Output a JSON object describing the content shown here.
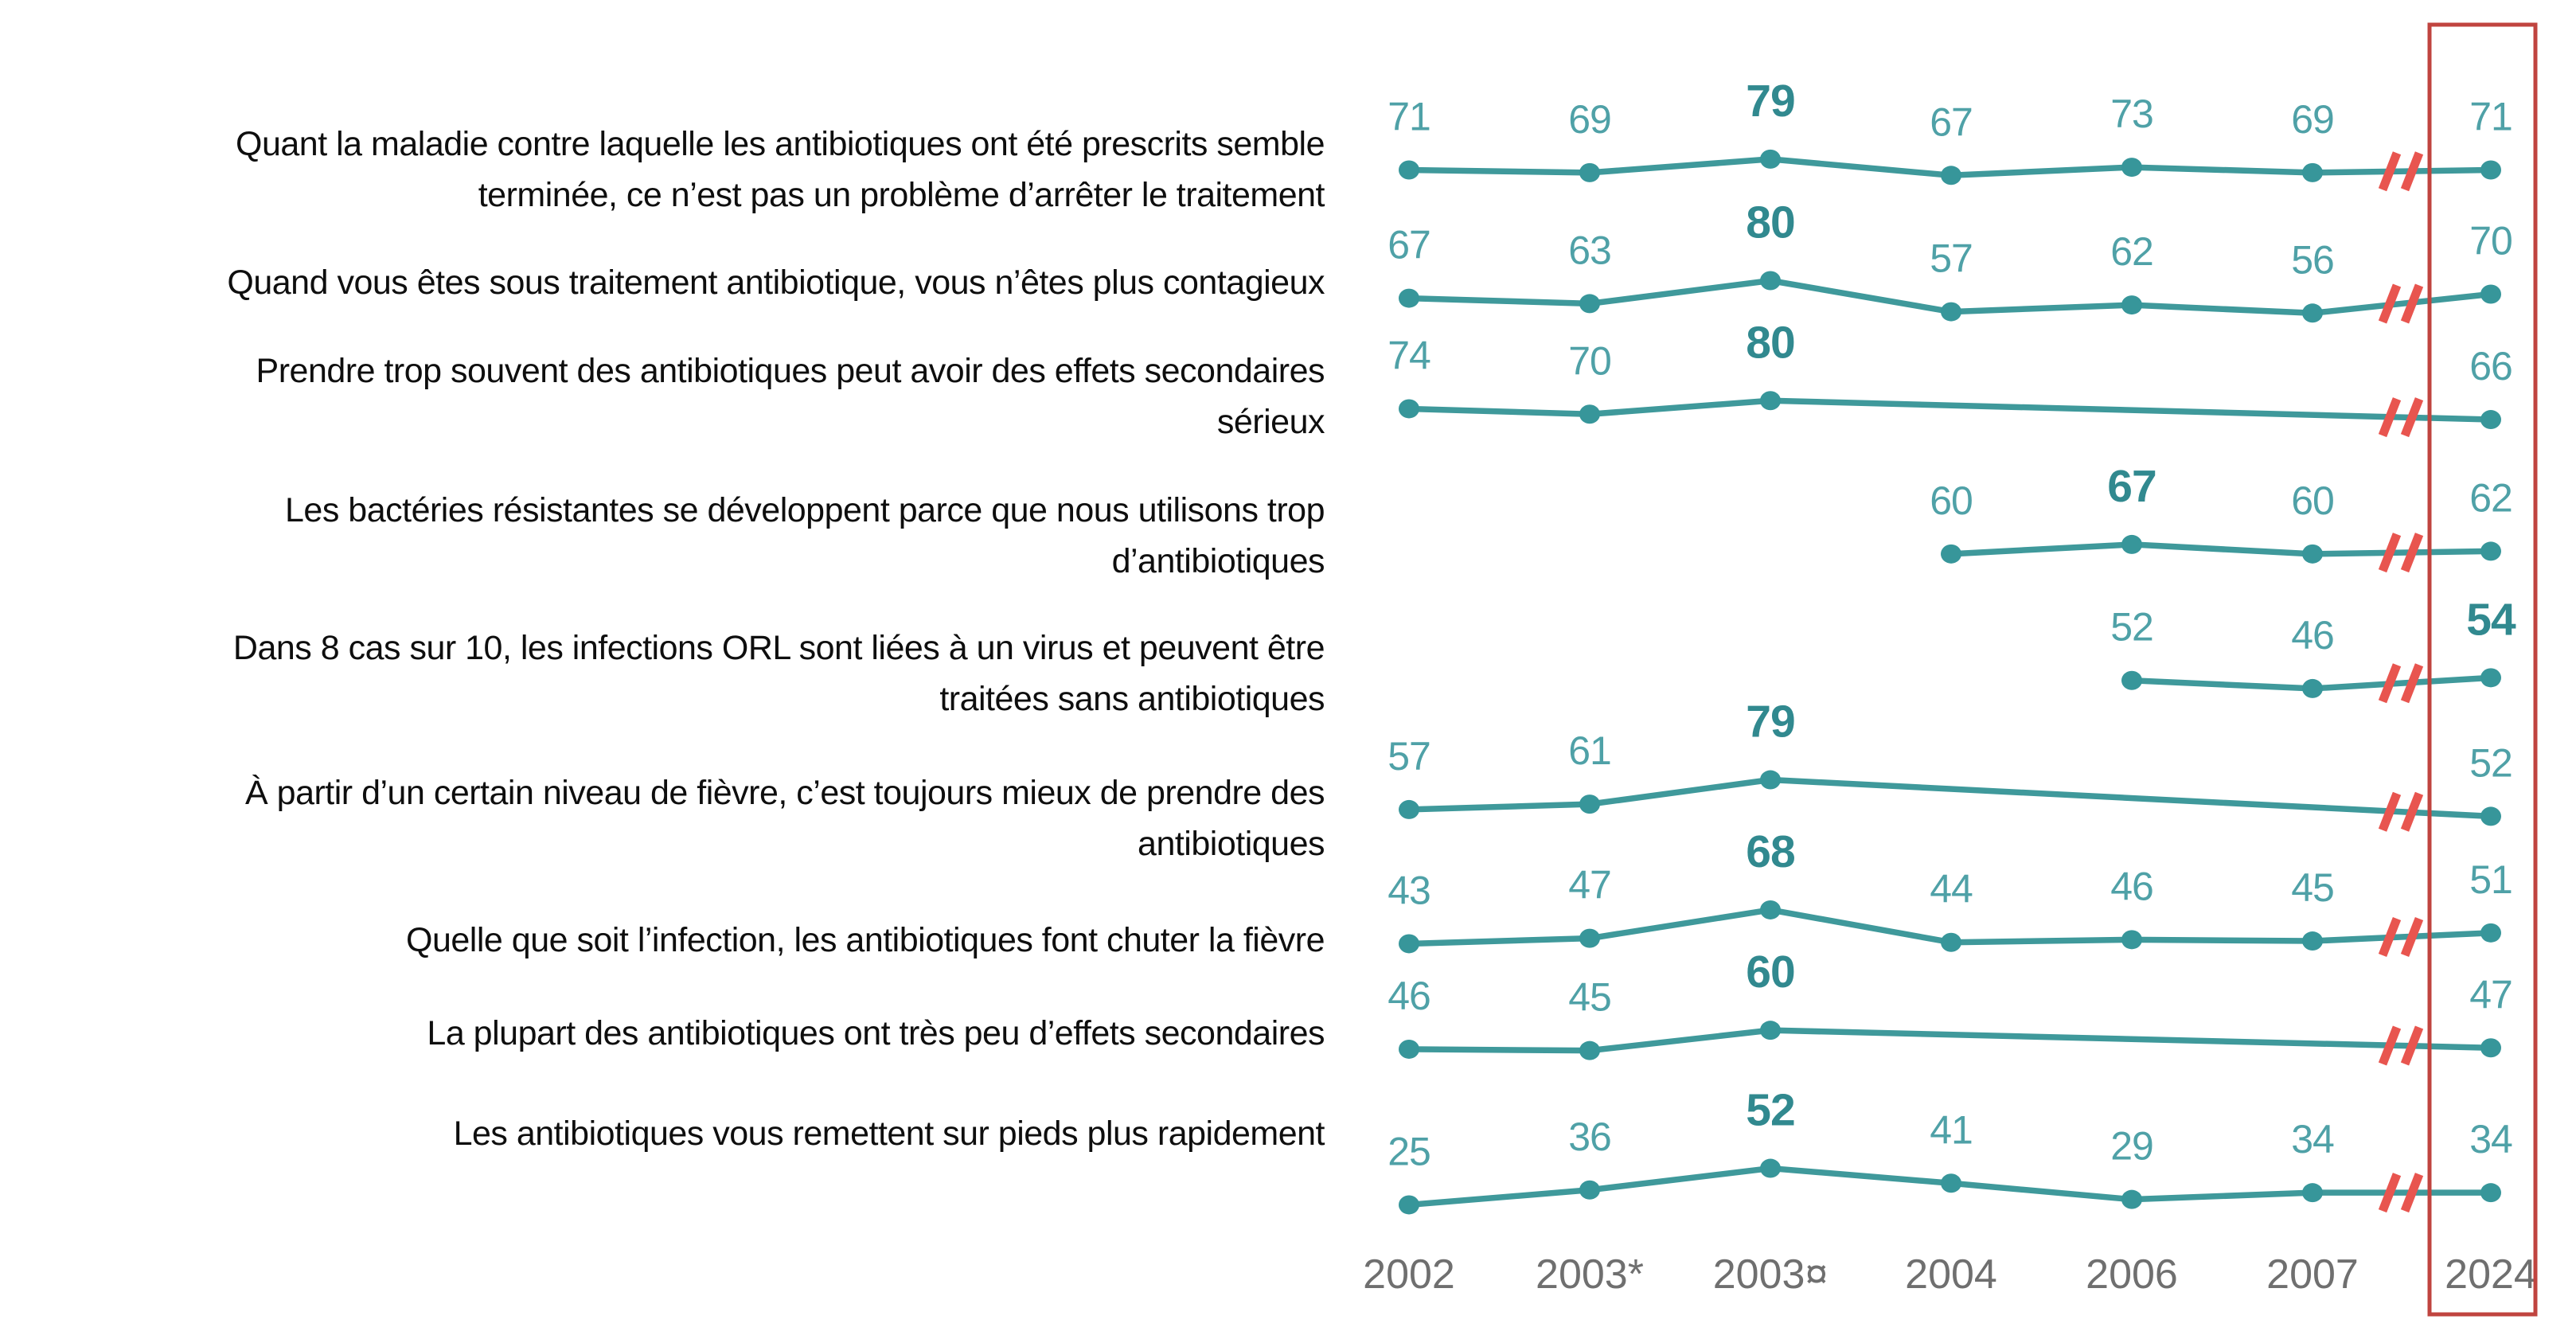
{
  "colors": {
    "line_teal": "#3F999B",
    "dot_teal": "#37969A",
    "number_teal": "#4FA1A7",
    "number_teal_bold": "#31898F",
    "break_red": "#E8554F",
    "box_red": "#C0443F",
    "axis_gray": "#6F6F6F",
    "label_black": "#0E0E0E"
  },
  "chart_data": {
    "type": "line",
    "x_categories": [
      "2002",
      "2003*",
      "2003¤",
      "2004",
      "2006",
      "2007",
      "2024"
    ],
    "axis_break": {
      "between": [
        "2007",
        "2024"
      ],
      "symbol": "//"
    },
    "highlighted_category": "2024",
    "legend_position": "none",
    "grid": false,
    "series": [
      {
        "label": "Quant la maladie contre laquelle les antibiotiques ont été prescrits semble terminée, ce n’est pas un problème d’arrêter le traitement",
        "label_lines": [
          "Quant la maladie contre laquelle les antibiotiques ont été prescrits semble",
          "terminée, ce n’est pas un problème d’arrêter le traitement"
        ],
        "values": [
          71,
          69,
          79,
          67,
          73,
          69,
          71
        ],
        "bold_category": "2003¤"
      },
      {
        "label": "Quand vous êtes sous traitement antibiotique, vous n’êtes plus contagieux",
        "label_lines": [
          "Quand vous êtes sous traitement antibiotique, vous n’êtes plus contagieux"
        ],
        "values": [
          67,
          63,
          80,
          57,
          62,
          56,
          70
        ],
        "bold_category": "2003¤"
      },
      {
        "label": "Prendre trop souvent des antibiotiques peut avoir des effets secondaires sérieux",
        "label_lines": [
          "Prendre trop souvent des antibiotiques peut avoir des effets secondaires",
          "sérieux"
        ],
        "values": [
          74,
          70,
          80,
          null,
          null,
          null,
          66
        ],
        "bold_category": "2003¤"
      },
      {
        "label": "Les bactéries résistantes se développent parce que nous utilisons trop d’antibiotiques",
        "label_lines": [
          "Les bactéries résistantes se développent parce que nous utilisons trop",
          "d’antibiotiques"
        ],
        "values": [
          null,
          null,
          null,
          60,
          67,
          60,
          62
        ],
        "bold_category": "2006"
      },
      {
        "label": "Dans 8 cas sur 10, les infections ORL sont liées à un virus et peuvent être traitées sans antibiotiques",
        "label_lines": [
          "Dans 8 cas sur 10, les infections ORL sont liées à un virus et peuvent être",
          "traitées sans antibiotiques"
        ],
        "values": [
          null,
          null,
          null,
          null,
          52,
          46,
          54
        ],
        "bold_category": "2024"
      },
      {
        "label": "À partir d’un certain niveau de fièvre, c’est toujours mieux de prendre des antibiotiques",
        "label_lines": [
          "À partir d’un certain niveau de fièvre, c’est toujours mieux de prendre des",
          "antibiotiques"
        ],
        "values": [
          57,
          61,
          79,
          null,
          null,
          null,
          52
        ],
        "bold_category": "2003¤"
      },
      {
        "label": "Quelle que soit l’infection, les antibiotiques font chuter la fièvre",
        "label_lines": [
          "Quelle que soit l’infection, les antibiotiques font chuter la fièvre"
        ],
        "values": [
          43,
          47,
          68,
          44,
          46,
          45,
          51
        ],
        "bold_category": "2003¤"
      },
      {
        "label": "La plupart des antibiotiques ont très peu d’effets secondaires",
        "label_lines": [
          "La plupart des antibiotiques ont très peu d’effets secondaires"
        ],
        "values": [
          46,
          45,
          60,
          null,
          null,
          null,
          47
        ],
        "bold_category": "2003¤"
      },
      {
        "label": "Les antibiotiques vous remettent sur pieds plus rapidement",
        "label_lines": [
          "Les antibiotiques vous remettent sur pieds plus rapidement"
        ],
        "values": [
          25,
          36,
          52,
          41,
          29,
          34,
          34
        ],
        "bold_category": "2003¤"
      }
    ]
  }
}
